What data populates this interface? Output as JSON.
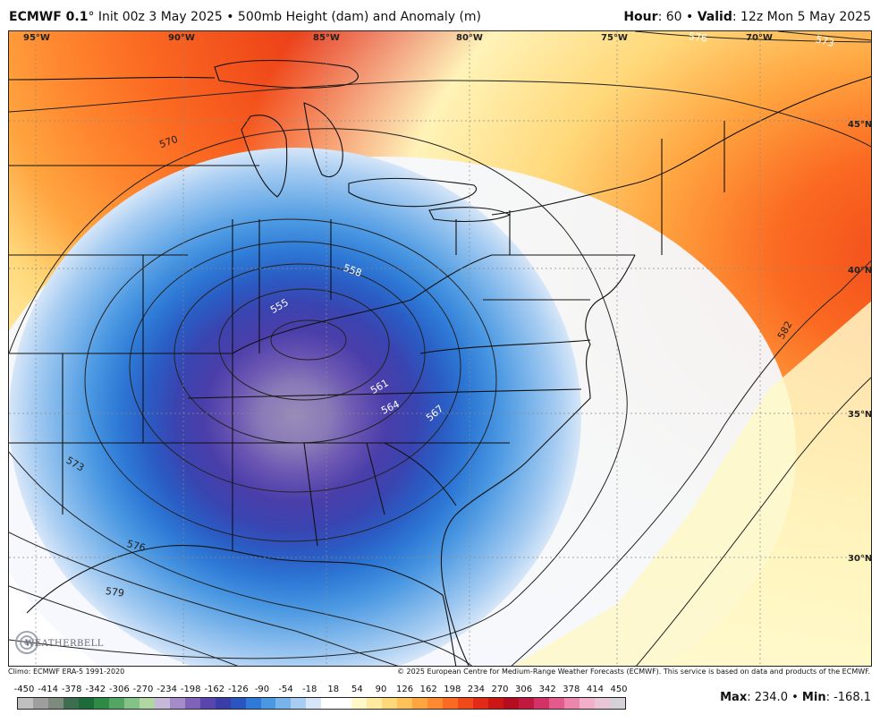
{
  "header": {
    "model": "ECMWF 0.1",
    "degree": "°",
    "init": "Init 00z 3 May 2025",
    "sep": "•",
    "product": "500mb Height (dam) and Anomaly (m)",
    "hour_label": "Hour",
    "hour_value": ": 60",
    "valid_label": "Valid",
    "valid_value": ": 12z Mon 5 May 2025"
  },
  "map": {
    "lon_labels": [
      "95°W",
      "90°W",
      "85°W",
      "80°W",
      "75°W",
      "70°W"
    ],
    "lat_labels": [
      "45°N",
      "40°N",
      "35°N",
      "30°N"
    ],
    "contour_labels": [
      "555",
      "558",
      "561",
      "564",
      "567",
      "570",
      "573",
      "576",
      "579",
      "582",
      "573",
      "576",
      "573",
      "582"
    ],
    "anomaly_low_center": "-168.1",
    "anomaly_high": "234.0"
  },
  "footer": {
    "climo": "Climo: ECMWF ERA-5 1991-2020",
    "copyright": "© 2025 European Centre for Medium-Range Weather Forecasts (ECMWF). This service is based on data and products of the ECMWF."
  },
  "colorbar": {
    "ticks": [
      "-450",
      "-414",
      "-378",
      "-342",
      "-306",
      "-270",
      "-234",
      "-198",
      "-162",
      "-126",
      "-90",
      "-54",
      "-18",
      "18",
      "54",
      "90",
      "126",
      "162",
      "198",
      "234",
      "270",
      "306",
      "342",
      "378",
      "414",
      "450"
    ],
    "colors": [
      "#bfbfbf",
      "#9e9e9e",
      "#7e8a7e",
      "#3e6e50",
      "#1e6b3a",
      "#2f8a47",
      "#55a562",
      "#85c285",
      "#b0d6a4",
      "#c6b8d8",
      "#a48cc8",
      "#7e63b8",
      "#5a44ad",
      "#3a3ca8",
      "#2a55c0",
      "#2e7ad6",
      "#4a97e2",
      "#78b3ea",
      "#a8cdf2",
      "#d6e6f8",
      "#ffffff",
      "#ffffff",
      "#fff8c8",
      "#ffeaa0",
      "#ffd87a",
      "#ffc25a",
      "#ffa540",
      "#ff8a30",
      "#fb6a22",
      "#f04a1a",
      "#e12a18",
      "#cc1515",
      "#b30d1f",
      "#c0193f",
      "#d33266",
      "#e45a8c",
      "#ec86ad",
      "#f2b0c8",
      "#e8c6d6",
      "#d6d0d8"
    ],
    "max_label": "Max",
    "max_value": ": 234.0",
    "sep": "•",
    "min_label": "Min",
    "min_value": ": -168.1"
  },
  "logo": {
    "text": "WEATHERBELL"
  }
}
